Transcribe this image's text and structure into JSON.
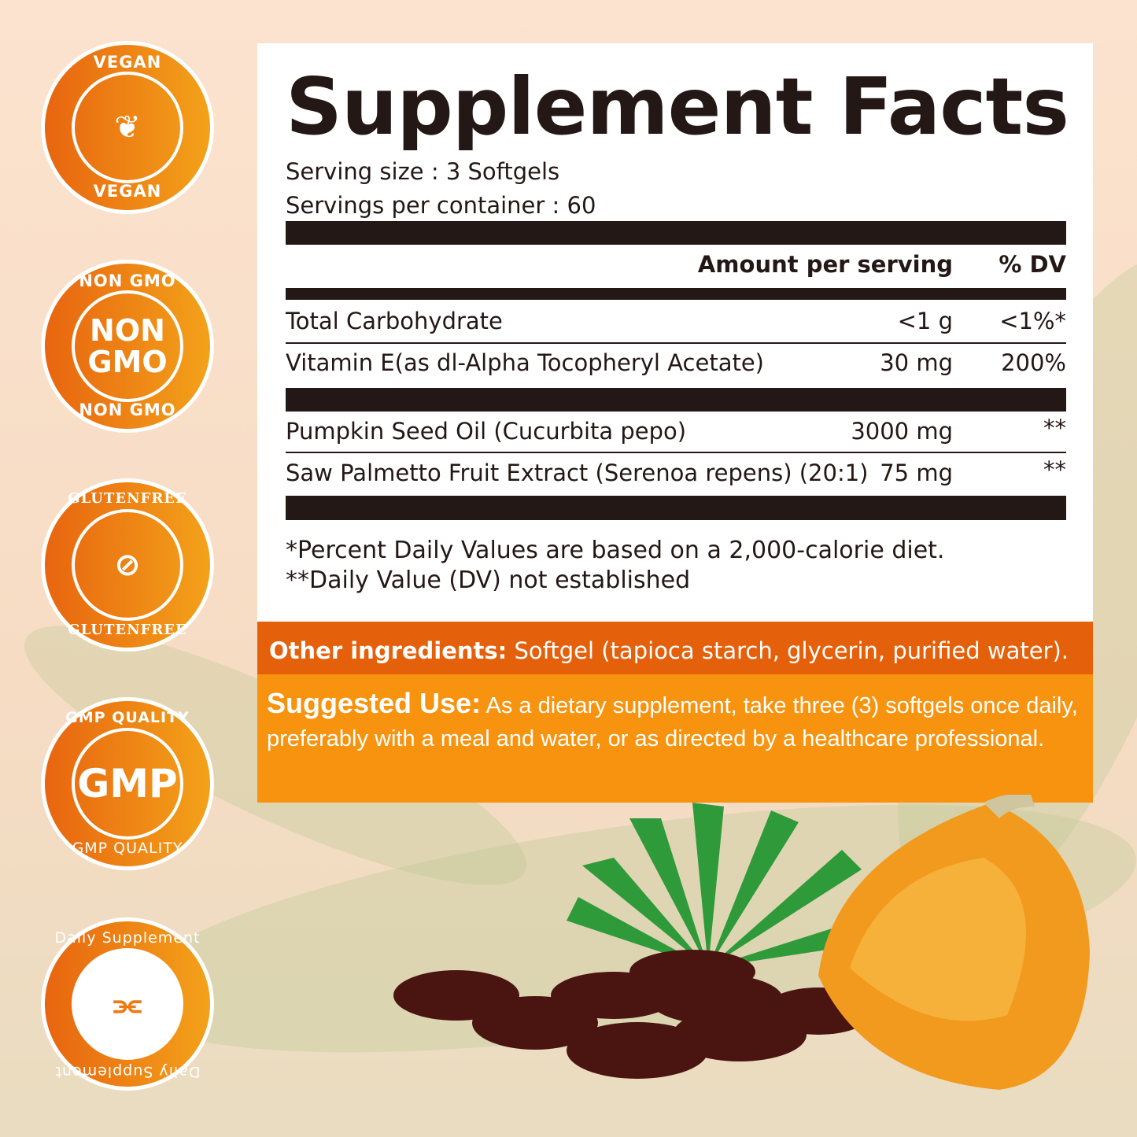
{
  "badges": [
    {
      "top": "VEGAN",
      "center": "",
      "bottom": "VEGAN",
      "icon": "leaf-hand-icon"
    },
    {
      "top": "NON GMO",
      "center": "NON GMO",
      "bottom": "NON GMO",
      "icon": ""
    },
    {
      "top": "GLUTENFREE",
      "center": "",
      "bottom": "GLUTENFREE",
      "icon": "crossed-wheat-icon"
    },
    {
      "top": "GMP QUALITY",
      "center": "GMP",
      "bottom": "GMP QUALITY",
      "icon": ""
    },
    {
      "top": "Daily Supplement",
      "center": "",
      "bottom": "Daily Supplement",
      "icon": "supplement-icon"
    }
  ],
  "label": {
    "title": "Supplement Facts",
    "serving_size": "Serving size : 3 Softgels",
    "servings_per_container": "Servings per container : 60",
    "header_amount": "Amount per serving",
    "header_dv": "% DV",
    "rows": [
      {
        "name": "Total Carbohydrate",
        "amount": "<1 g",
        "dv": "<1%*"
      },
      {
        "name": "Vitamin E(as dl-Alpha Tocopheryl Acetate)",
        "amount": "30 mg",
        "dv": "200%"
      },
      {
        "name": "Pumpkin Seed Oil (Cucurbita pepo)",
        "amount": "3000 mg",
        "dv": "**"
      },
      {
        "name": "Saw Palmetto Fruit Extract (Serenoa repens) (20:1)",
        "amount": "75 mg",
        "dv": "**"
      }
    ],
    "footnote1": "*Percent Daily Values are based on a 2,000-calorie diet.",
    "footnote2": "**Daily Value (DV) not established"
  },
  "other_ingredients": {
    "label": "Other ingredients:",
    "text": " Softgel (tapioca starch, glycerin, purified water)."
  },
  "suggested_use": {
    "label": "Suggested Use:",
    "text": " As a dietary supplement, take three (3) softgels once daily, preferably with a meal and water, or as directed by a healthcare professional."
  },
  "colors": {
    "orange_dark": "#e4600b",
    "orange": "#f7930e",
    "ink": "#231815",
    "pumpkin": "#f29a1e",
    "softgel": "#4a1410"
  }
}
